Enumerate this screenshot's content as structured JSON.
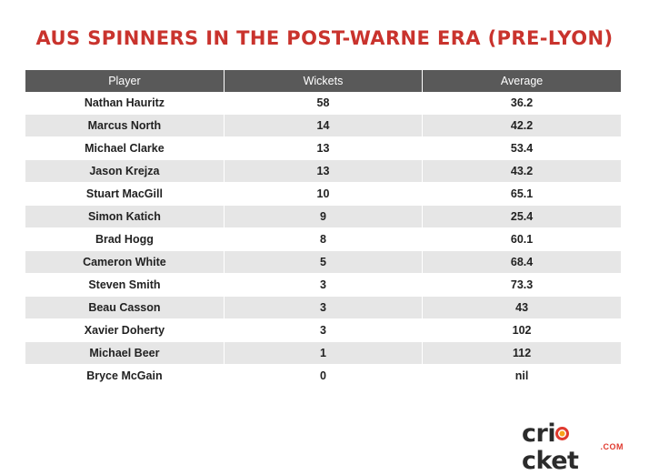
{
  "chart_data": {
    "type": "table",
    "title": "AUS SPINNERS IN THE POST-WARNE ERA (PRE-LYON)",
    "columns": [
      "Player",
      "Wickets",
      "Average"
    ],
    "rows": [
      [
        "Nathan Hauritz",
        "58",
        "36.2"
      ],
      [
        "Marcus North",
        "14",
        "42.2"
      ],
      [
        "Michael Clarke",
        "13",
        "53.4"
      ],
      [
        "Jason Krejza",
        "13",
        "43.2"
      ],
      [
        "Stuart MacGill",
        "10",
        "65.1"
      ],
      [
        "Simon Katich",
        "9",
        "25.4"
      ],
      [
        "Brad Hogg",
        "8",
        "60.1"
      ],
      [
        "Cameron White",
        "5",
        "68.4"
      ],
      [
        "Steven Smith",
        "3",
        "73.3"
      ],
      [
        "Beau Casson",
        "3",
        "43"
      ],
      [
        "Xavier Doherty",
        "3",
        "102"
      ],
      [
        "Michael Beer",
        "1",
        "112"
      ],
      [
        "Bryce McGain",
        "0",
        "nil"
      ]
    ]
  },
  "logo": {
    "pre": "cr",
    "post": "cket",
    "sub": ".COM"
  },
  "colors": {
    "title": "#c9332d",
    "header_bg": "#595959",
    "stripe": "#e6e6e6",
    "logo_accent": "#e03a2f"
  }
}
